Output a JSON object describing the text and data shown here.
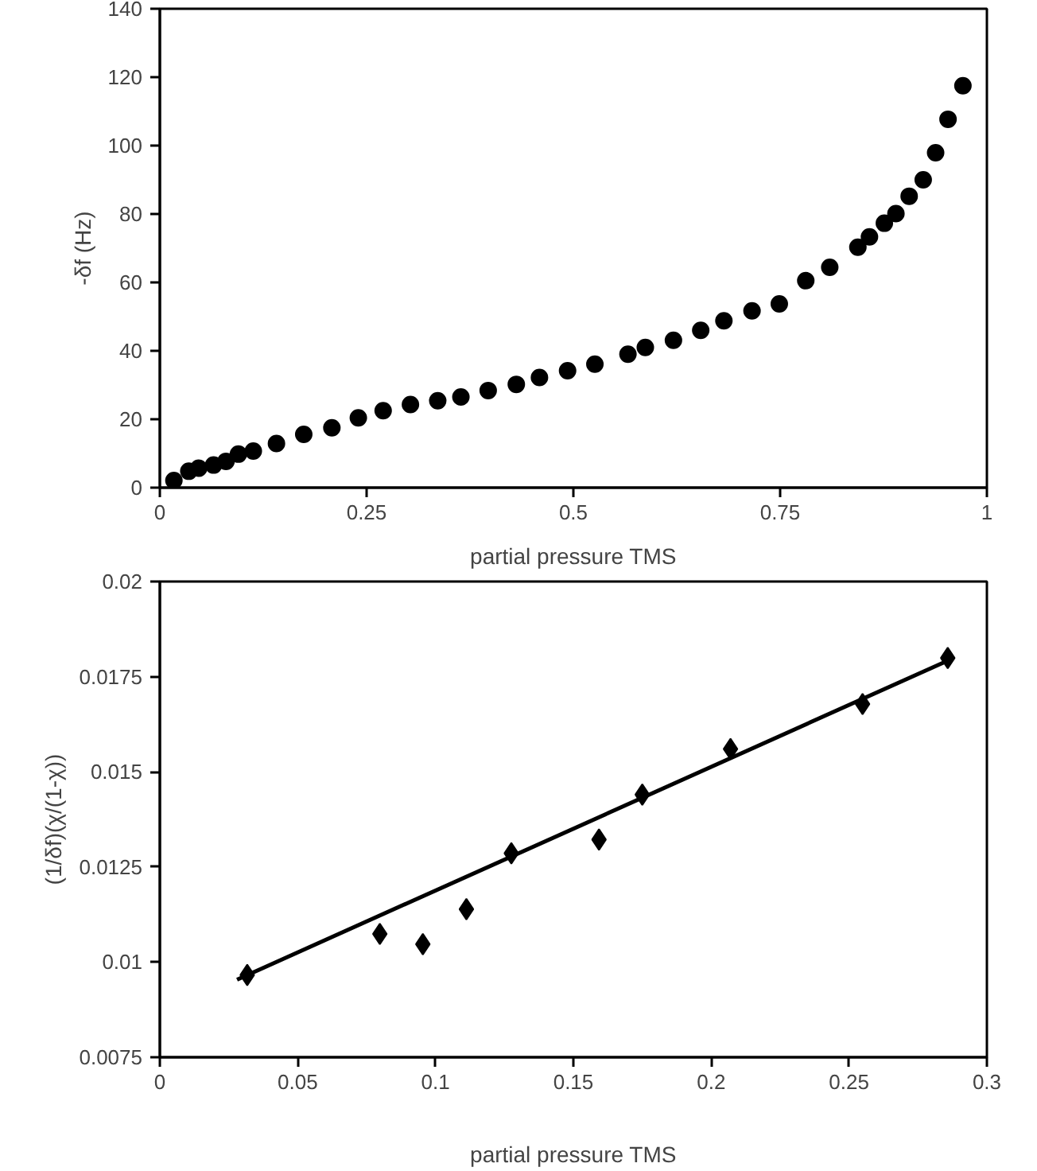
{
  "chart_data": [
    {
      "type": "scatter",
      "xlabel": "partial pressure TMS",
      "ylabel": "-δf (Hz)",
      "xlim": [
        0,
        1
      ],
      "ylim": [
        0,
        140
      ],
      "xticks": [
        0,
        {
          "value": 0.25,
          "label": "0.25"
        },
        {
          "value": 0.5,
          "label": "0.5"
        },
        {
          "value": 0.75,
          "label": "0.75"
        },
        1
      ],
      "yticks": [
        0,
        20,
        40,
        60,
        80,
        100,
        120,
        140
      ],
      "grid": false,
      "marker": "circle",
      "series": [
        {
          "color": "#000000",
          "x": [
            0.017,
            0.035,
            0.047,
            0.065,
            0.08,
            0.095,
            0.113,
            0.141,
            0.174,
            0.208,
            0.24,
            0.27,
            0.303,
            0.336,
            0.364,
            0.397,
            0.431,
            0.459,
            0.493,
            0.526,
            0.566,
            0.587,
            0.621,
            0.654,
            0.682,
            0.716,
            0.749,
            0.781,
            0.81,
            0.844,
            0.858,
            0.876,
            0.89,
            0.906,
            0.923,
            0.938,
            0.953,
            0.971
          ],
          "values": [
            2.1,
            4.8,
            5.7,
            6.6,
            7.7,
            9.8,
            10.7,
            12.9,
            15.6,
            17.5,
            20.4,
            22.5,
            24.3,
            25.4,
            26.5,
            28.4,
            30.2,
            32.2,
            34.2,
            36.1,
            39.0,
            41.0,
            43.1,
            46.0,
            48.8,
            51.7,
            53.7,
            60.5,
            64.4,
            70.3,
            73.3,
            77.3,
            80.1,
            85.2,
            90.0,
            97.9,
            107.7,
            117.5
          ]
        }
      ]
    },
    {
      "type": "scatter",
      "xlabel": "partial pressure TMS",
      "ylabel": "(1/δf)(χ/(1-χ))",
      "xlim": [
        0,
        0.3
      ],
      "ylim": [
        0.0075,
        0.02
      ],
      "xticks": [
        0,
        0.05,
        0.1,
        0.15,
        0.2,
        0.25,
        0.3
      ],
      "yticks": [
        {
          "value": 0.0075,
          "label": "0.0075"
        },
        0.01,
        {
          "value": 0.0125,
          "label": "0.0125"
        },
        0.015,
        {
          "value": 0.0175,
          "label": "0.0175"
        },
        0.02
      ],
      "grid": false,
      "marker": "diamond",
      "series": [
        {
          "color": "#000000",
          "x": [
            0.0317,
            0.0798,
            0.0954,
            0.1112,
            0.1275,
            0.1593,
            0.175,
            0.207,
            0.2549,
            0.2858
          ],
          "values": [
            0.00966,
            0.01074,
            0.01047,
            0.01139,
            0.01286,
            0.01322,
            0.0144,
            0.0156,
            0.01678,
            0.01799
          ]
        },
        {
          "type": "line",
          "color": "#000000",
          "marker": "none",
          "line_style": "solid",
          "x": [
            0.028,
            0.2858
          ],
          "values": [
            0.00954,
            0.01792
          ]
        }
      ]
    }
  ]
}
